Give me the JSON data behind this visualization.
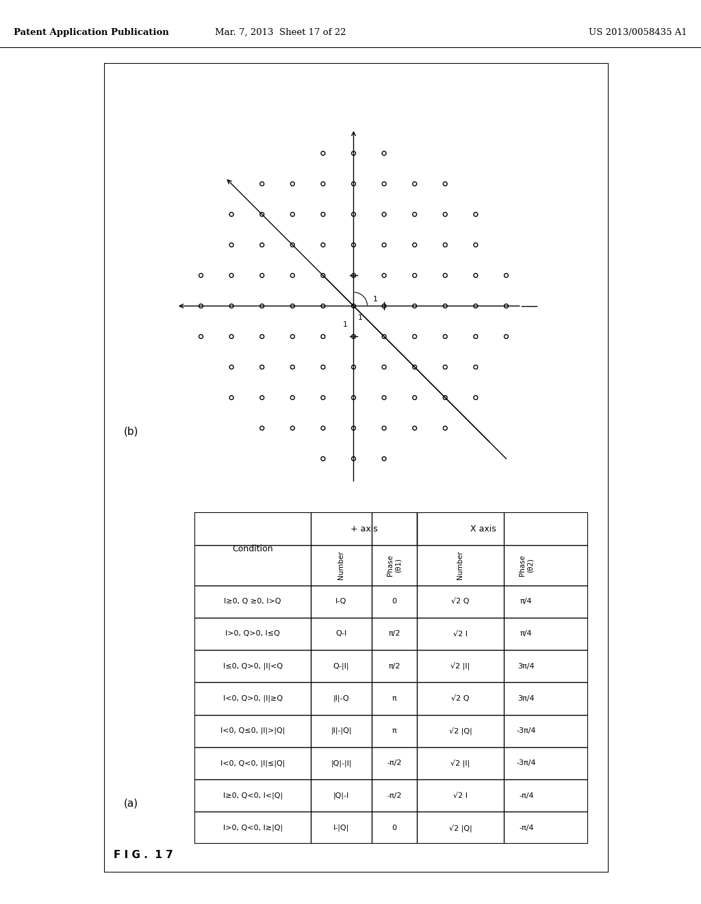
{
  "header_left": "Patent Application Publication",
  "header_mid": "Mar. 7, 2013  Sheet 17 of 22",
  "header_right": "US 2013/0058435 A1",
  "fig_label": "F I G .  1 7",
  "part_b_label": "(b)",
  "part_a_label": "(a)",
  "table_rows": [
    [
      "I≥0, Q ≥0, I>Q",
      "I-Q",
      "0",
      "√2 Q",
      "π/4"
    ],
    [
      "I>0, Q>0, I≤Q",
      "Q-I",
      "π/2",
      "√2 I",
      "π/4"
    ],
    [
      "I≤0, Q>0, |I|<Q",
      "Q-|I|",
      "π/2",
      "√2 |I|",
      "3π/4"
    ],
    [
      "I<0, Q>0, |I|≥Q",
      "|I|-Q",
      "π",
      "√2 Q",
      "3π/4"
    ],
    [
      "I<0, Q≤0, |I|>|Q|",
      "|I|-|Q|",
      "π",
      "√2 |Q|",
      "-3π/4"
    ],
    [
      "I<0, Q<0, |I|≤|Q|",
      "|Q|-|I|",
      "-π/2",
      "√2 |I|",
      "-3π/4"
    ],
    [
      "I≥0, Q<0, I<|Q|",
      "|Q|-I",
      "-π/2",
      "√2 I",
      "-π/4"
    ],
    [
      "I>0, Q<0, I≥|Q|",
      "I-|Q|",
      "0",
      "√2 |Q|",
      "-π/4"
    ]
  ],
  "col_headers_rotated": [
    "Condition",
    "Number",
    "Phase\n(θ1)",
    "Number",
    "Phase\n(θ2)"
  ],
  "group_headers": [
    "",
    "+ axis",
    "",
    "X axis",
    ""
  ],
  "bg_color": "#ffffff"
}
